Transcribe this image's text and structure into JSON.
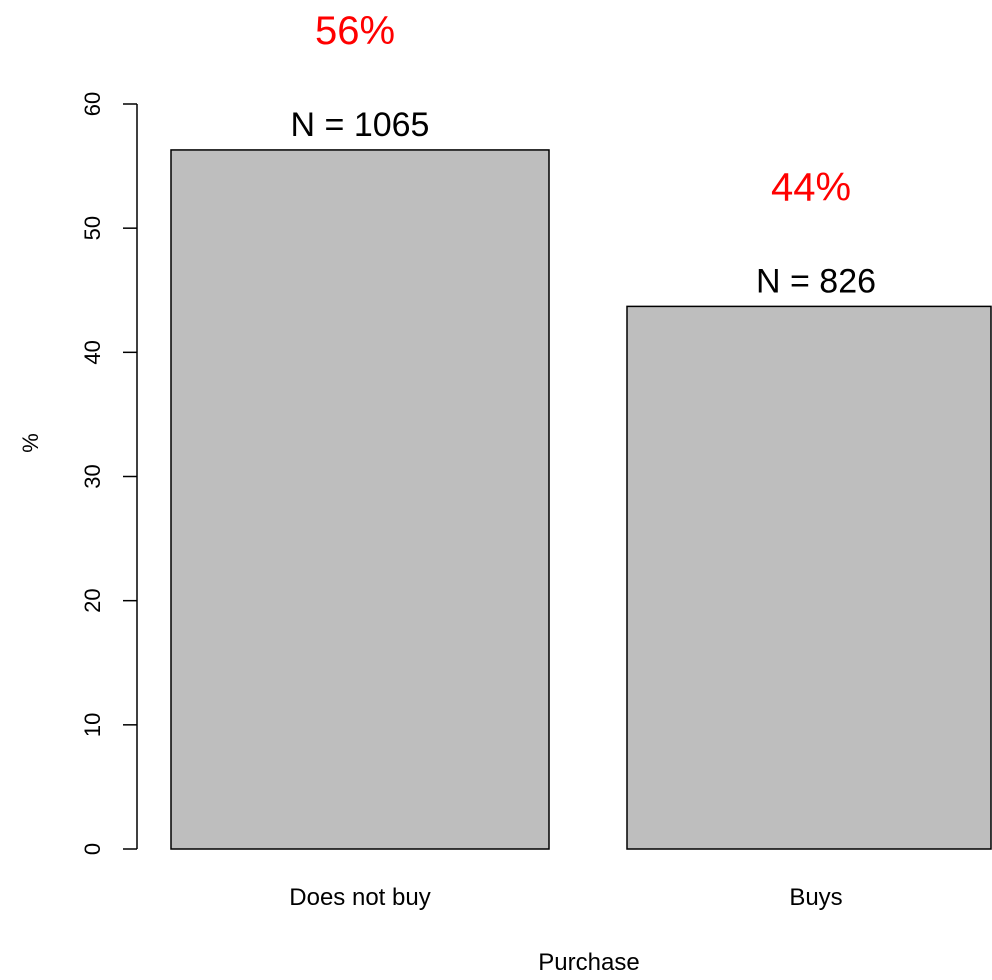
{
  "chart_data": {
    "type": "bar",
    "title": "",
    "xlabel": "Purchase",
    "ylabel": "%",
    "ylim": [
      0,
      60
    ],
    "yticks": [
      0,
      10,
      20,
      30,
      40,
      50,
      60
    ],
    "grid": false,
    "categories": [
      "Does not buy",
      "Buys"
    ],
    "values": [
      56.3,
      43.7
    ],
    "count_labels": [
      "N = 1065",
      "N = 826"
    ],
    "percent_labels": [
      "56%",
      "44%"
    ]
  },
  "colors": {
    "bar_fill": "#bebebe",
    "bar_stroke": "#000000",
    "axis": "#000000",
    "count_label": "#000000",
    "percent_label": "#ff0000"
  }
}
